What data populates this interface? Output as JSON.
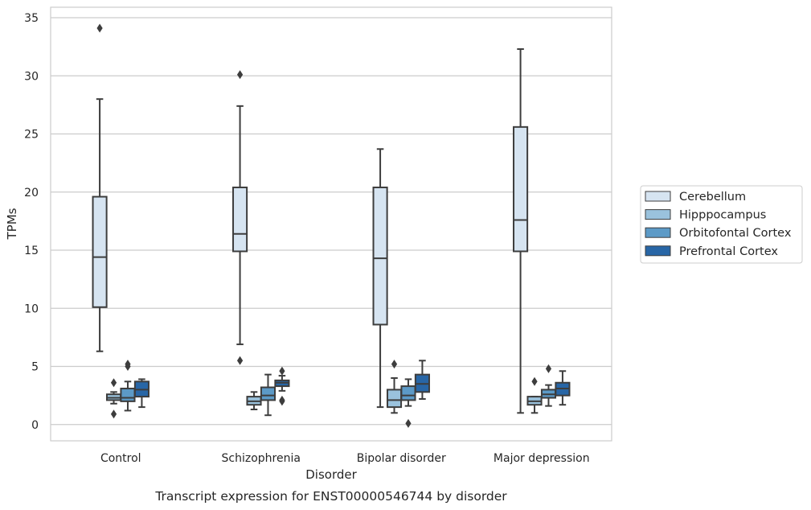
{
  "chart_data": {
    "type": "box",
    "caption": "Transcript expression for ENST00000546744 by disorder",
    "xlabel": "Disorder",
    "ylabel": "TPMs",
    "ylim": [
      -1.4,
      35.9
    ],
    "yticks": [
      0,
      5,
      10,
      15,
      20,
      25,
      30,
      35
    ],
    "grid": "horizontal",
    "legend_position": "right",
    "categories": [
      "Control",
      "Schizophrenia",
      "Bipolar disorder",
      "Major depression"
    ],
    "series": [
      {
        "name": "Cerebellum",
        "color": "#d6e4f1",
        "boxes": [
          {
            "whislo": 6.3,
            "q1": 10.1,
            "med": 14.4,
            "q3": 19.6,
            "whishi": 28.0,
            "fliers": [
              34.1
            ]
          },
          {
            "whislo": 6.9,
            "q1": 14.9,
            "med": 16.4,
            "q3": 20.4,
            "whishi": 27.4,
            "fliers": [
              30.1,
              5.5
            ]
          },
          {
            "whislo": 1.5,
            "q1": 8.6,
            "med": 14.3,
            "q3": 20.4,
            "whishi": 23.7,
            "fliers": []
          },
          {
            "whislo": 1.0,
            "q1": 14.9,
            "med": 17.6,
            "q3": 25.6,
            "whishi": 32.3,
            "fliers": []
          }
        ]
      },
      {
        "name": "Hipppocampus",
        "color": "#9ac2dd",
        "boxes": [
          {
            "whislo": 1.8,
            "q1": 2.1,
            "med": 2.3,
            "q3": 2.6,
            "whishi": 2.8,
            "fliers": [
              3.6,
              0.9
            ]
          },
          {
            "whislo": 1.3,
            "q1": 1.7,
            "med": 2.0,
            "q3": 2.4,
            "whishi": 2.8,
            "fliers": []
          },
          {
            "whislo": 1.0,
            "q1": 1.5,
            "med": 2.1,
            "q3": 3.0,
            "whishi": 4.0,
            "fliers": [
              5.2
            ]
          },
          {
            "whislo": 1.0,
            "q1": 1.7,
            "med": 2.0,
            "q3": 2.4,
            "whishi": 2.4,
            "fliers": [
              3.7
            ]
          }
        ]
      },
      {
        "name": "Orbitofontal Cortex",
        "color": "#5c9ac7",
        "boxes": [
          {
            "whislo": 1.2,
            "q1": 2.0,
            "med": 2.3,
            "q3": 3.1,
            "whishi": 3.7,
            "fliers": [
              5.2,
              5.0
            ]
          },
          {
            "whislo": 0.8,
            "q1": 2.1,
            "med": 2.5,
            "q3": 3.2,
            "whishi": 4.3,
            "fliers": []
          },
          {
            "whislo": 1.6,
            "q1": 2.1,
            "med": 2.5,
            "q3": 3.3,
            "whishi": 3.9,
            "fliers": [
              0.1
            ]
          },
          {
            "whislo": 1.6,
            "q1": 2.3,
            "med": 2.6,
            "q3": 3.0,
            "whishi": 3.4,
            "fliers": [
              4.8
            ]
          }
        ]
      },
      {
        "name": "Prefrontal Cortex",
        "color": "#2866a6",
        "boxes": [
          {
            "whislo": 1.5,
            "q1": 2.4,
            "med": 3.0,
            "q3": 3.7,
            "whishi": 3.9,
            "fliers": []
          },
          {
            "whislo": 2.9,
            "q1": 3.3,
            "med": 3.6,
            "q3": 3.8,
            "whishi": 4.2,
            "fliers": [
              4.6,
              2.1,
              2.0
            ]
          },
          {
            "whislo": 2.2,
            "q1": 2.8,
            "med": 3.5,
            "q3": 4.3,
            "whishi": 5.5,
            "fliers": []
          },
          {
            "whislo": 1.7,
            "q1": 2.5,
            "med": 3.1,
            "q3": 3.6,
            "whishi": 4.6,
            "fliers": []
          }
        ]
      }
    ]
  }
}
